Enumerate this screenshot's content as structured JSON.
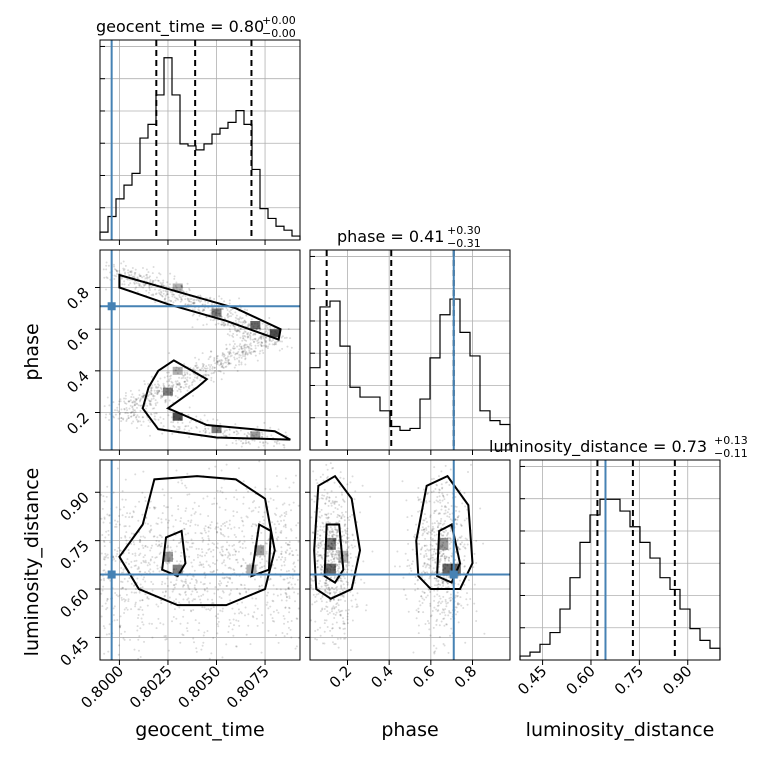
{
  "figure": {
    "titles": {
      "geocent_time": {
        "label": "geocent_time = 0.80",
        "sup": "+0.00",
        "sub": "−0.00"
      },
      "phase": {
        "label": "phase = 0.41",
        "sup": "+0.30",
        "sub": "−0.31"
      },
      "luminosity_distance": {
        "label": "luminosity_distance = 0.73",
        "sup": "+0.13",
        "sub": "−0.11"
      }
    },
    "axis_labels": {
      "geocent_time": "geocent_time",
      "phase": "phase",
      "luminosity_distance": "luminosity_distance"
    },
    "colors": {
      "truth": "#4682b4",
      "hist": "#000000",
      "grid": "#b0b0b0"
    }
  },
  "chart_data": {
    "type": "corner",
    "parameters": [
      "geocent_time",
      "phase",
      "luminosity_distance"
    ],
    "ranges": {
      "geocent_time": [
        0.799,
        0.8093
      ],
      "phase": [
        0.02,
        0.98
      ],
      "luminosity_distance": [
        0.38,
        1.0
      ]
    },
    "truths": {
      "geocent_time": 0.7996,
      "phase": 0.71,
      "luminosity_distance": 0.645
    },
    "quantiles": {
      "geocent_time": [
        0.8019,
        0.8039,
        0.8068
      ],
      "phase": [
        0.1,
        0.41,
        0.71
      ],
      "luminosity_distance": [
        0.62,
        0.73,
        0.86
      ]
    },
    "ticks": {
      "geocent_time": {
        "values": [
          0.8,
          0.8025,
          0.805,
          0.8075
        ],
        "labels": [
          "0.8000",
          "0.8025",
          "0.8050",
          "0.8075"
        ]
      },
      "phase_y": {
        "values": [
          0.2,
          0.4,
          0.6,
          0.8
        ],
        "labels": [
          "0.2",
          "0.4",
          "0.6",
          "0.8"
        ]
      },
      "phase_x": {
        "values": [
          0.2,
          0.4,
          0.6,
          0.8
        ],
        "labels": [
          "0.2",
          "0.4",
          "0.6",
          "0.8"
        ]
      },
      "luminosity_distance": {
        "values": [
          0.45,
          0.6,
          0.75,
          0.9
        ],
        "labels": [
          "0.45",
          "0.60",
          "0.75",
          "0.90"
        ]
      }
    },
    "histograms": {
      "geocent_time": [
        0.04,
        0.12,
        0.21,
        0.28,
        0.34,
        0.52,
        0.59,
        0.74,
        0.93,
        0.74,
        0.49,
        0.48,
        0.46,
        0.49,
        0.54,
        0.57,
        0.6,
        0.66,
        0.59,
        0.36,
        0.16,
        0.11,
        0.07,
        0.05,
        0.02
      ],
      "phase": [
        0.42,
        0.73,
        0.76,
        0.53,
        0.32,
        0.27,
        0.27,
        0.2,
        0.12,
        0.1,
        0.11,
        0.26,
        0.47,
        0.69,
        0.77,
        0.6,
        0.48,
        0.2,
        0.15,
        0.13
      ],
      "luminosity_distance": [
        0.02,
        0.04,
        0.08,
        0.14,
        0.26,
        0.42,
        0.6,
        0.74,
        0.82,
        0.82,
        0.76,
        0.68,
        0.6,
        0.52,
        0.42,
        0.36,
        0.26,
        0.16,
        0.1,
        0.06
      ]
    },
    "ylim_hist": [
      0,
      1.0
    ]
  }
}
